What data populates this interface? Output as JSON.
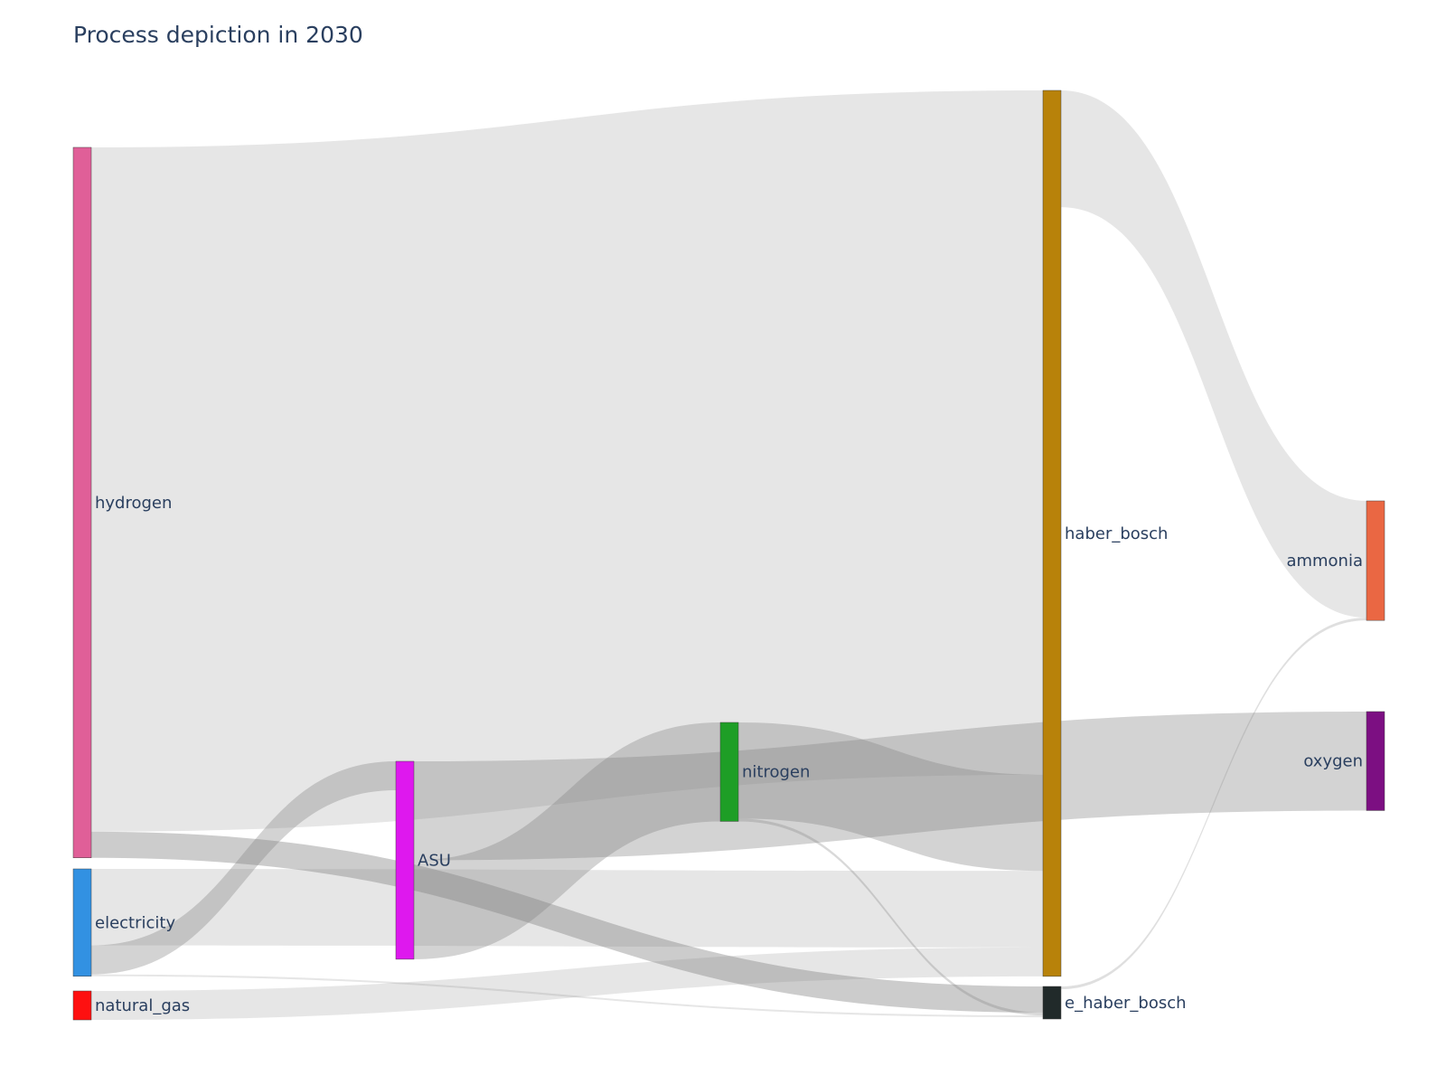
{
  "chart_data": {
    "type": "sankey",
    "title": "Process depiction in 2030",
    "nodes": [
      {
        "id": "hydrogen",
        "label": "hydrogen",
        "color": "#e05f98",
        "column": 0
      },
      {
        "id": "electricity",
        "label": "electricity",
        "color": "#3291e2",
        "column": 0
      },
      {
        "id": "natural_gas",
        "label": "natural_gas",
        "color": "#fe1010",
        "column": 0
      },
      {
        "id": "ASU",
        "label": "ASU",
        "color": "#de18ee",
        "column": 1
      },
      {
        "id": "nitrogen",
        "label": "nitrogen",
        "color": "#1e9e26",
        "column": 2
      },
      {
        "id": "haber_bosch",
        "label": "haber_bosch",
        "color": "#b8820a",
        "column": 3
      },
      {
        "id": "e_haber_bosch",
        "label": "e_haber_bosch",
        "color": "#212a2a",
        "column": 3
      },
      {
        "id": "ammonia",
        "label": "ammonia",
        "color": "#ea6743",
        "column": 4
      },
      {
        "id": "oxygen",
        "label": "oxygen",
        "color": "#7c0f82",
        "column": 4
      }
    ],
    "links": [
      {
        "source": "hydrogen",
        "target": "haber_bosch",
        "value": 733,
        "alpha": 0.2
      },
      {
        "source": "hydrogen",
        "target": "e_haber_bosch",
        "value": 28,
        "alpha": 0.4
      },
      {
        "source": "electricity",
        "target": "haber_bosch",
        "value": 82,
        "alpha": 0.2
      },
      {
        "source": "electricity",
        "target": "ASU",
        "value": 31,
        "alpha": 0.35
      },
      {
        "source": "electricity",
        "target": "e_haber_bosch",
        "value": 2,
        "alpha": 0.2
      },
      {
        "source": "natural_gas",
        "target": "haber_bosch",
        "value": 31,
        "alpha": 0.2
      },
      {
        "source": "ASU",
        "target": "oxygen",
        "value": 106,
        "alpha": 0.35
      },
      {
        "source": "ASU",
        "target": "nitrogen",
        "value": 106,
        "alpha": 0.35
      },
      {
        "source": "nitrogen",
        "target": "haber_bosch",
        "value": 103,
        "alpha": 0.35
      },
      {
        "source": "nitrogen",
        "target": "e_haber_bosch",
        "value": 3,
        "alpha": 0.3
      },
      {
        "source": "haber_bosch",
        "target": "ammonia",
        "value": 125,
        "alpha": 0.2
      },
      {
        "source": "haber_bosch",
        "target": "oxygen",
        "value": 0,
        "alpha": 0.2
      },
      {
        "source": "e_haber_bosch",
        "target": "ammonia",
        "value": 3,
        "alpha": 0.25
      }
    ],
    "link_color": "#808080"
  }
}
